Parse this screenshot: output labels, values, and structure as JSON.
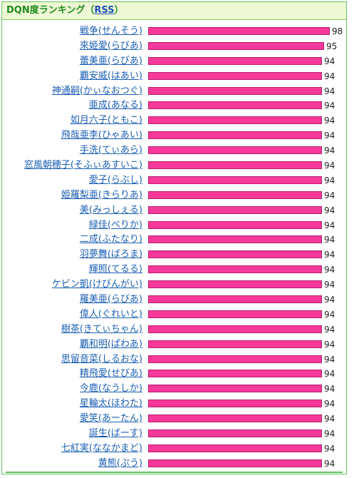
{
  "header": {
    "title": "DQN度ランキング（",
    "rss": "RSS",
    "close": "）"
  },
  "colors": {
    "bar": "#f7399a",
    "link": "#1a5fb4",
    "border": "#5fc35f"
  },
  "max_score": 100,
  "rankings": [
    {
      "name": "戦争(せんそう)",
      "score": 98
    },
    {
      "name": "來姫愛(らびあ)",
      "score": 95
    },
    {
      "name": "蕾美亜(らびあ)",
      "score": 94
    },
    {
      "name": "覇安威(はあい)",
      "score": 94
    },
    {
      "name": "神通嗣(かぃなおつぐ)",
      "score": 94
    },
    {
      "name": "亜成(あなる)",
      "score": 94
    },
    {
      "name": "如月六子(ともこ)",
      "score": 94
    },
    {
      "name": "飛哉亜李(ひゃあい)",
      "score": 94
    },
    {
      "name": "手洗(てぃあら)",
      "score": 94
    },
    {
      "name": "窓風朝穂子(そふぃあすいこ)",
      "score": 94
    },
    {
      "name": "愛子(らぶし)",
      "score": 94
    },
    {
      "name": "姫羅梨亜(きらりあ)",
      "score": 94
    },
    {
      "name": "美(みっしぇる)",
      "score": 94
    },
    {
      "name": "緑佳(べりか)",
      "score": 94
    },
    {
      "name": "二成(ふたなり)",
      "score": 94
    },
    {
      "name": "羽夢舞(ばろま)",
      "score": 94
    },
    {
      "name": "輝照(てるる)",
      "score": 94
    },
    {
      "name": "ケビン凱(けびんがい)",
      "score": 94
    },
    {
      "name": "羅美亜(らびあ)",
      "score": 94
    },
    {
      "name": "偉人(ぐれいと)",
      "score": 94
    },
    {
      "name": "樹茶(きてぃちゃん)",
      "score": 94
    },
    {
      "name": "覇和明(ぱわあ)",
      "score": 94
    },
    {
      "name": "思留音菜(しるおな)",
      "score": 94
    },
    {
      "name": "精飛愛(せびあ)",
      "score": 94
    },
    {
      "name": "今鹿(なうしか)",
      "score": 94
    },
    {
      "name": "星輪太(ほわた)",
      "score": 94
    },
    {
      "name": "愛笑(あーたん)",
      "score": 94
    },
    {
      "name": "誕生(ばーす)",
      "score": 94
    },
    {
      "name": "七紅実(ななかまど)",
      "score": 94
    },
    {
      "name": "黄熊(ぷう)",
      "score": 94
    }
  ]
}
